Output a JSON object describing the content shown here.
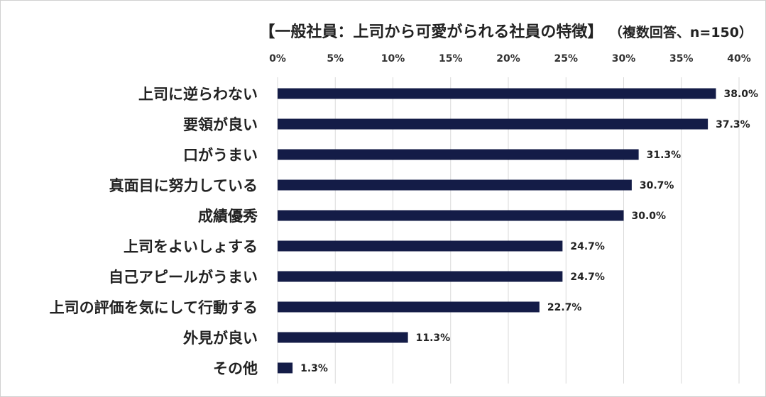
{
  "chart_data": {
    "type": "bar",
    "orientation": "horizontal",
    "title": "【一般社員：上司から可愛がられる社員の特徴】",
    "subtitle": "（複数回答、n=150）",
    "xlabel": "",
    "ylabel": "",
    "xlim": [
      0,
      40
    ],
    "x_ticks": [
      "0%",
      "5%",
      "10%",
      "15%",
      "20%",
      "25%",
      "30%",
      "35%",
      "40%"
    ],
    "x_tick_values": [
      0,
      5,
      10,
      15,
      20,
      25,
      30,
      35,
      40
    ],
    "grid": true,
    "legend": "none",
    "categories": [
      "上司に逆らわない",
      "要領が良い",
      "口がうまい",
      "真面目に努力している",
      "成績優秀",
      "上司をよいしょする",
      "自己アピールがうまい",
      "上司の評価を気にして行動する",
      "外見が良い",
      "その他"
    ],
    "values": [
      38.0,
      37.3,
      31.3,
      30.7,
      30.0,
      24.7,
      24.7,
      22.7,
      11.3,
      1.3
    ],
    "value_labels": [
      "38.0%",
      "37.3%",
      "31.3%",
      "30.7%",
      "30.0%",
      "24.7%",
      "24.7%",
      "22.7%",
      "11.3%",
      "1.3%"
    ],
    "bar_color": "#141c47"
  }
}
